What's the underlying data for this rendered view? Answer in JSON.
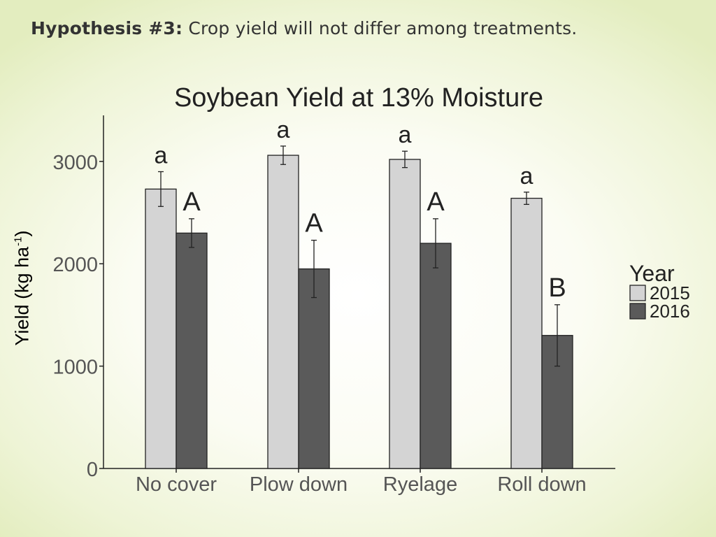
{
  "slide": {
    "heading_lead": "Hypothesis #3:",
    "heading_text": " Crop yield will not differ among treatments."
  },
  "chart_data": {
    "type": "bar",
    "title": "Soybean Yield at 13% Moisture",
    "ylabel": "Yield (kg ha",
    "ylabel_sup": "-1",
    "ylabel_close": ")",
    "xlabel": "",
    "categories": [
      "No cover",
      "Plow down",
      "Ryelage",
      "Roll down"
    ],
    "ylim": [
      0,
      3450
    ],
    "yticks": [
      0,
      1000,
      2000,
      3000
    ],
    "legend": {
      "title": "Year",
      "placement": "right"
    },
    "grid": false,
    "series": [
      {
        "name": "2015",
        "color": "#d4d4d4",
        "values": [
          2730,
          3060,
          3020,
          2640
        ],
        "errors": [
          170,
          90,
          80,
          60
        ],
        "letters": [
          "a",
          "a",
          "a",
          "a"
        ]
      },
      {
        "name": "2016",
        "color": "#5a5a5a",
        "values": [
          2300,
          1950,
          2200,
          1300
        ],
        "errors": [
          140,
          280,
          240,
          300
        ],
        "letters": [
          "A",
          "A",
          "A",
          "B"
        ]
      }
    ]
  }
}
